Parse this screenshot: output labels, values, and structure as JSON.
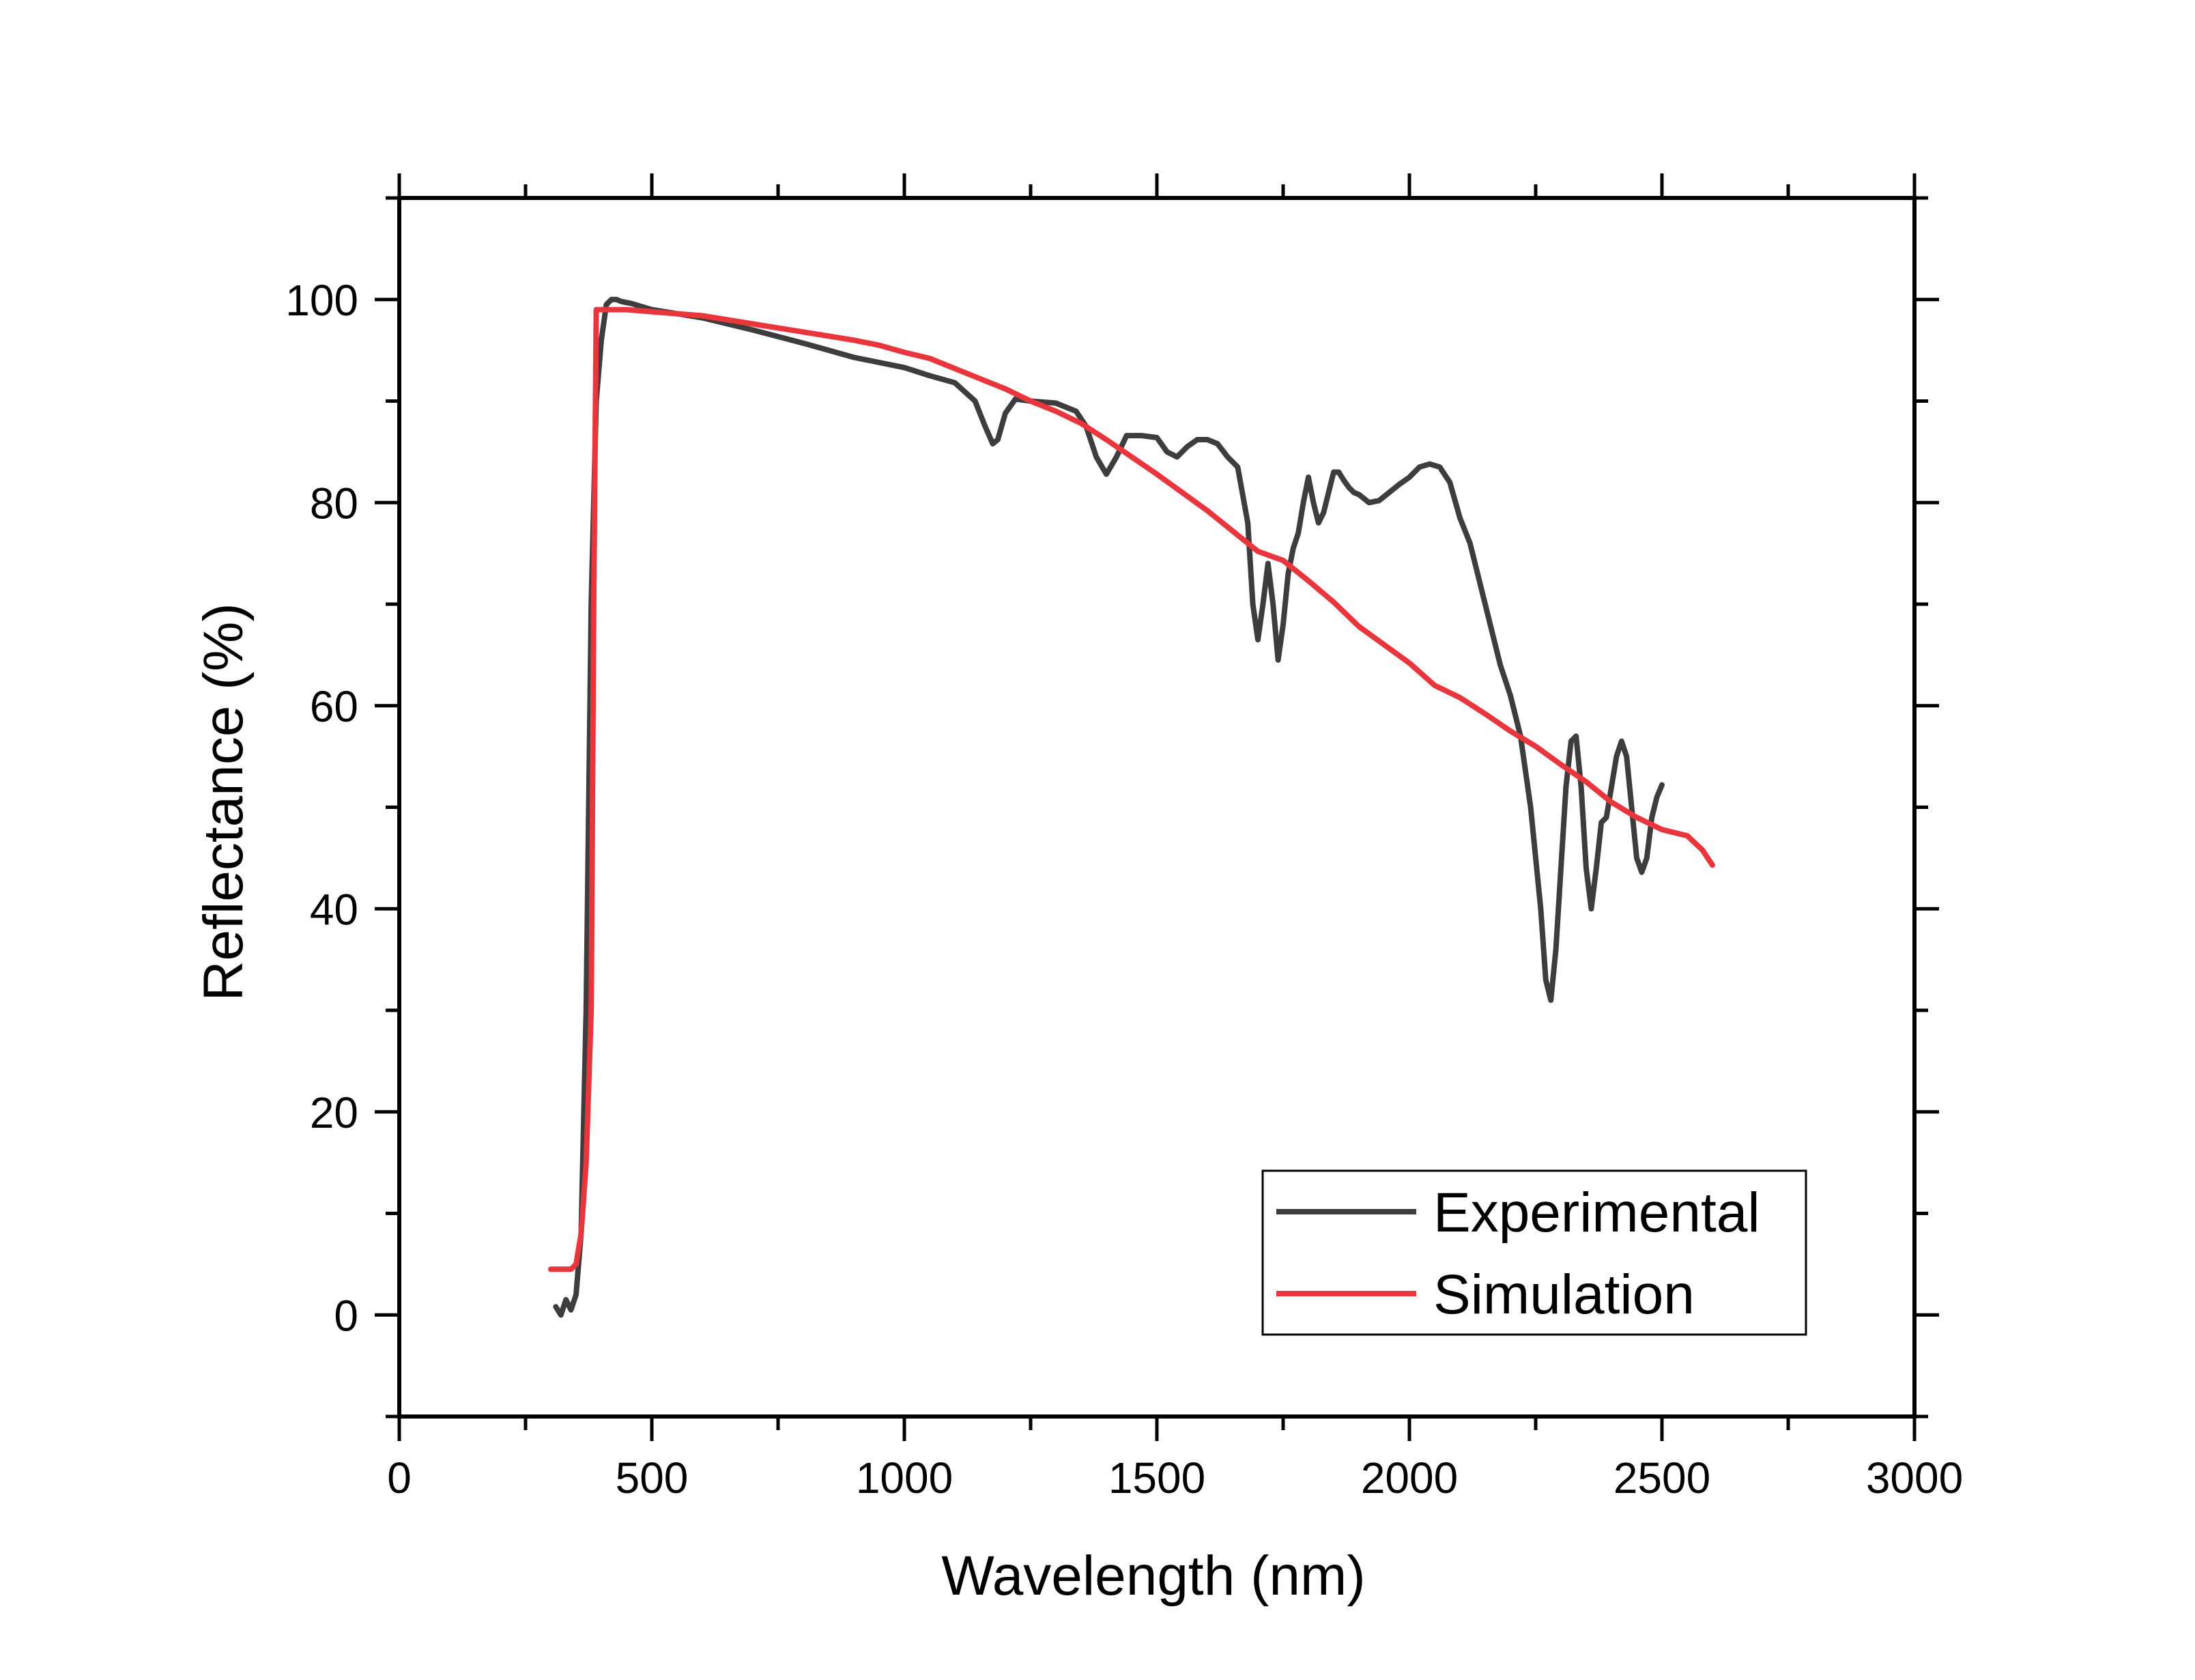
{
  "chart_data": {
    "type": "line",
    "title": "",
    "xlabel": "Wavelength (nm)",
    "ylabel": "Reflectance (%)",
    "xlim": [
      0,
      3000
    ],
    "ylim": [
      -10,
      110
    ],
    "x_ticks": [
      0,
      500,
      1000,
      1500,
      2000,
      2500,
      3000
    ],
    "y_ticks": [
      0,
      20,
      40,
      60,
      80,
      100
    ],
    "grid": false,
    "legend_position": "bottom-right",
    "series": [
      {
        "name": "Experimental",
        "color": "#3d3d3d",
        "x": [
          310,
          320,
          330,
          340,
          350,
          360,
          370,
          380,
          390,
          400,
          410,
          420,
          430,
          440,
          460,
          500,
          600,
          700,
          800,
          850,
          900,
          950,
          1000,
          1050,
          1100,
          1140,
          1160,
          1175,
          1185,
          1200,
          1220,
          1250,
          1300,
          1340,
          1360,
          1380,
          1400,
          1420,
          1440,
          1470,
          1500,
          1520,
          1540,
          1560,
          1580,
          1600,
          1620,
          1640,
          1660,
          1680,
          1690,
          1700,
          1710,
          1720,
          1730,
          1740,
          1750,
          1760,
          1770,
          1780,
          1790,
          1800,
          1810,
          1820,
          1830,
          1840,
          1850,
          1860,
          1870,
          1880,
          1890,
          1900,
          1920,
          1940,
          1960,
          1980,
          2000,
          2020,
          2040,
          2060,
          2080,
          2100,
          2120,
          2140,
          2150,
          2160,
          2180,
          2200,
          2220,
          2240,
          2260,
          2270,
          2280,
          2290,
          2300,
          2310,
          2320,
          2330,
          2340,
          2350,
          2360,
          2370,
          2380,
          2390,
          2400,
          2410,
          2420,
          2430,
          2440,
          2450,
          2460,
          2470,
          2480,
          2490,
          2500
        ],
        "values": [
          0.8,
          0,
          1.5,
          0.5,
          2,
          8,
          30,
          70,
          90,
          96,
          99.5,
          100,
          100,
          99.8,
          99.6,
          99,
          98.2,
          97,
          95.7,
          95,
          94.3,
          93.8,
          93.3,
          92.5,
          91.8,
          90,
          87.5,
          85.8,
          86.2,
          88.8,
          90.2,
          90,
          89.8,
          89,
          87.5,
          84.5,
          82.8,
          84.5,
          86.6,
          86.6,
          86.4,
          85,
          84.5,
          85.5,
          86.2,
          86.2,
          85.8,
          84.5,
          83.5,
          78,
          70,
          66.5,
          70,
          74,
          70,
          64.5,
          68,
          73,
          75.5,
          77,
          80,
          82.5,
          80,
          78,
          79,
          81,
          83,
          83,
          82.2,
          81.5,
          81,
          80.8,
          80,
          80.2,
          81,
          81.8,
          82.5,
          83.5,
          83.8,
          83.5,
          82,
          78.5,
          76,
          72,
          70,
          68,
          64,
          61,
          57,
          50,
          40,
          33,
          31,
          36,
          44,
          52,
          56.5,
          57,
          52,
          44,
          40,
          44,
          48.5,
          49,
          52,
          55,
          56.5,
          55,
          50,
          45,
          43.6,
          45,
          49,
          51,
          52.2
        ]
      },
      {
        "name": "Simulation",
        "color": "#e8363c",
        "x": [
          300,
          340,
          350,
          360,
          370,
          380,
          385,
          390,
          400,
          450,
          500,
          550,
          600,
          650,
          700,
          750,
          800,
          850,
          900,
          950,
          1000,
          1050,
          1100,
          1150,
          1200,
          1250,
          1300,
          1350,
          1400,
          1450,
          1500,
          1550,
          1600,
          1650,
          1700,
          1750,
          1800,
          1850,
          1900,
          1950,
          2000,
          2050,
          2100,
          2150,
          2200,
          2250,
          2300,
          2350,
          2400,
          2450,
          2500,
          2550,
          2580,
          2600
        ],
        "values": [
          4.5,
          4.5,
          5,
          8,
          15,
          30,
          70,
          99,
          99,
          99,
          98.8,
          98.6,
          98.4,
          98,
          97.6,
          97.2,
          96.8,
          96.4,
          96,
          95.5,
          94.8,
          94.2,
          93.2,
          92.2,
          91.2,
          90,
          89,
          87.8,
          86.2,
          84.5,
          82.8,
          81,
          79.2,
          77.2,
          75.2,
          74.3,
          72.3,
          70.2,
          67.8,
          66,
          64.2,
          62,
          60.8,
          59.2,
          57.5,
          56,
          54.2,
          52.5,
          50.5,
          49,
          47.8,
          47.2,
          45.8,
          44.3
        ]
      }
    ]
  }
}
